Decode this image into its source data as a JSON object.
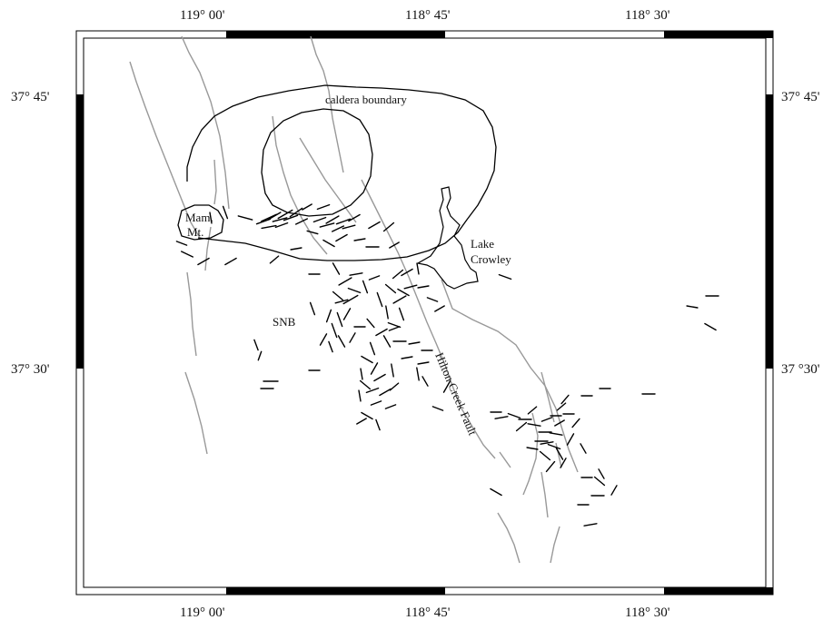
{
  "map": {
    "lon_labels": [
      "119° 00'",
      "118° 45'",
      "118° 30'"
    ],
    "lat_labels": [
      "37° 45'",
      "37° 30'"
    ],
    "lat_labels_right": [
      "37° 45'",
      "37 °30'"
    ],
    "labels": {
      "caldera": "caldera boundary",
      "mammoth": [
        "Mam.",
        "Mt."
      ],
      "lake": [
        "Lake",
        "Crowley"
      ],
      "snb": "SNB",
      "fault": "Hilton Creek Fault"
    },
    "colors": {
      "fault_lines": "#999999",
      "outlines": "#000000",
      "ticks": "#000000"
    }
  }
}
